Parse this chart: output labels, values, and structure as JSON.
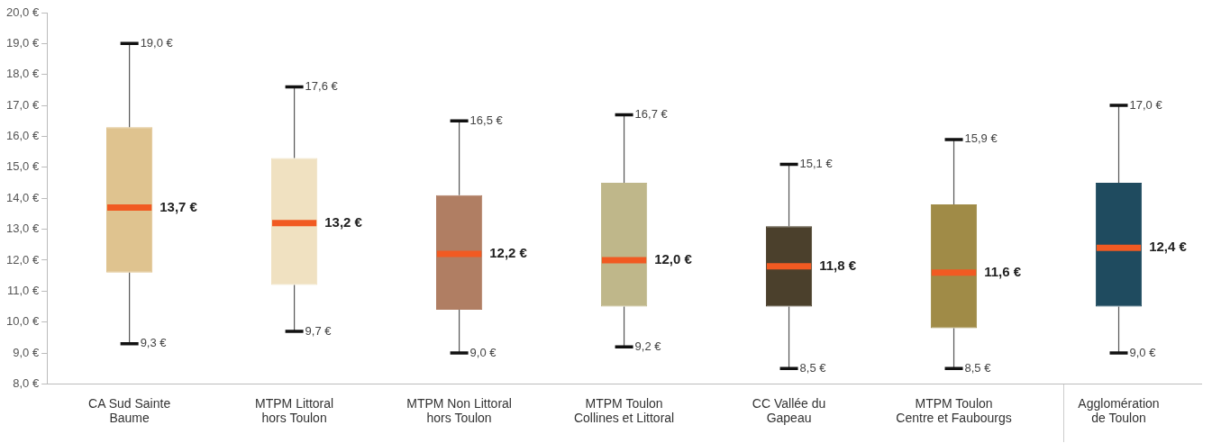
{
  "chart_data": {
    "type": "box",
    "categories": [
      "CA Sud Sainte\nBaume",
      "MTPM Littoral\nhors Toulon",
      "MTPM Non Littoral\nhors Toulon",
      "MTPM Toulon\nCollines et Littoral",
      "CC Vallée du\nGapeau",
      "MTPM Toulon\nCentre et Faubourgs",
      "Agglomération\nde Toulon"
    ],
    "boxes": [
      {
        "low": 9.3,
        "q1": 11.6,
        "median": 13.7,
        "q3": 16.3,
        "high": 19.0
      },
      {
        "low": 9.7,
        "q1": 11.2,
        "median": 13.2,
        "q3": 15.3,
        "high": 17.6
      },
      {
        "low": 9.0,
        "q1": 10.4,
        "median": 12.2,
        "q3": 14.1,
        "high": 16.5
      },
      {
        "low": 9.2,
        "q1": 10.5,
        "median": 12.0,
        "q3": 14.5,
        "high": 16.7
      },
      {
        "low": 8.5,
        "q1": 10.5,
        "median": 11.8,
        "q3": 13.1,
        "high": 15.1
      },
      {
        "low": 8.5,
        "q1": 9.8,
        "median": 11.6,
        "q3": 13.8,
        "high": 15.9
      },
      {
        "low": 9.0,
        "q1": 10.5,
        "median": 12.4,
        "q3": 14.5,
        "high": 17.0
      }
    ],
    "colors": [
      "#dfc38f",
      "#f0e1c1",
      "#b07e63",
      "#bfb78a",
      "#4b402c",
      "#a08b47",
      "#1f4b5f"
    ],
    "ylim": [
      8,
      20
    ],
    "yticks": [
      {
        "value": 8,
        "label": "8,0 €"
      },
      {
        "value": 9,
        "label": "9,0 €"
      },
      {
        "value": 10,
        "label": "10,0 €"
      },
      {
        "value": 11,
        "label": "11,0 €"
      },
      {
        "value": 12,
        "label": "12,0 €"
      },
      {
        "value": 13,
        "label": "13,0 €"
      },
      {
        "value": 14,
        "label": "14,0 €"
      },
      {
        "value": 15,
        "label": "15,0 €"
      },
      {
        "value": 16,
        "label": "16,0 €"
      },
      {
        "value": 17,
        "label": "17,0 €"
      },
      {
        "value": 18,
        "label": "18,0 €"
      },
      {
        "value": 19,
        "label": "19,0 €"
      },
      {
        "value": 20,
        "label": "20,0 €"
      }
    ],
    "grid": false,
    "legend": false,
    "annotations": [
      {
        "text": "19,0 €",
        "x": "CA Sud Sainte\nBaume",
        "y": 19.0
      },
      {
        "text": "13,7 €",
        "x": "CA Sud Sainte\nBaume",
        "y": 13.7
      },
      {
        "text": "9,3 €",
        "x": "CA Sud Sainte\nBaume",
        "y": 9.3
      },
      {
        "text": "17,6 €",
        "x": "MTPM Littoral\nhors Toulon",
        "y": 17.6
      },
      {
        "text": "13,2 €",
        "x": "MTPM Littoral\nhors Toulon",
        "y": 13.2
      },
      {
        "text": "9,7 €",
        "x": "MTPM Littoral\nhors Toulon",
        "y": 9.7
      },
      {
        "text": "16,5 €",
        "x": "MTPM Non Littoral\nhors Toulon",
        "y": 16.5
      },
      {
        "text": "12,2 €",
        "x": "MTPM Non Littoral\nhors Toulon",
        "y": 12.2
      },
      {
        "text": "9,0 €",
        "x": "MTPM Non Littoral\nhors Toulon",
        "y": 9.0
      },
      {
        "text": "16,7 €",
        "x": "MTPM Toulon\nCollines et Littoral",
        "y": 16.7
      },
      {
        "text": "12,0 €",
        "x": "MTPM Toulon\nCollines et Littoral",
        "y": 12.0
      },
      {
        "text": "9,2 €",
        "x": "MTPM Toulon\nCollines et Littoral",
        "y": 9.2
      },
      {
        "text": "15,1 €",
        "x": "CC Vallée du\nGapeau",
        "y": 15.1
      },
      {
        "text": "11,8 €",
        "x": "CC Vallée du\nGapeau",
        "y": 11.8
      },
      {
        "text": "8,5 €",
        "x": "CC Vallée du\nGapeau",
        "y": 8.5
      },
      {
        "text": "15,9 €",
        "x": "MTPM Toulon\nCentre et Faubourgs",
        "y": 15.9
      },
      {
        "text": "11,6 €",
        "x": "MTPM Toulon\nCentre et Faubourgs",
        "y": 11.6
      },
      {
        "text": "8,5 €",
        "x": "MTPM Toulon\nCentre et Faubourgs",
        "y": 8.5
      },
      {
        "text": "17,0 €",
        "x": "Agglomération\nde Toulon",
        "y": 17.0
      },
      {
        "text": "12,4 €",
        "x": "Agglomération\nde Toulon",
        "y": 12.4
      },
      {
        "text": "9,0 €",
        "x": "Agglomération\nde Toulon",
        "y": 9.0
      }
    ]
  }
}
